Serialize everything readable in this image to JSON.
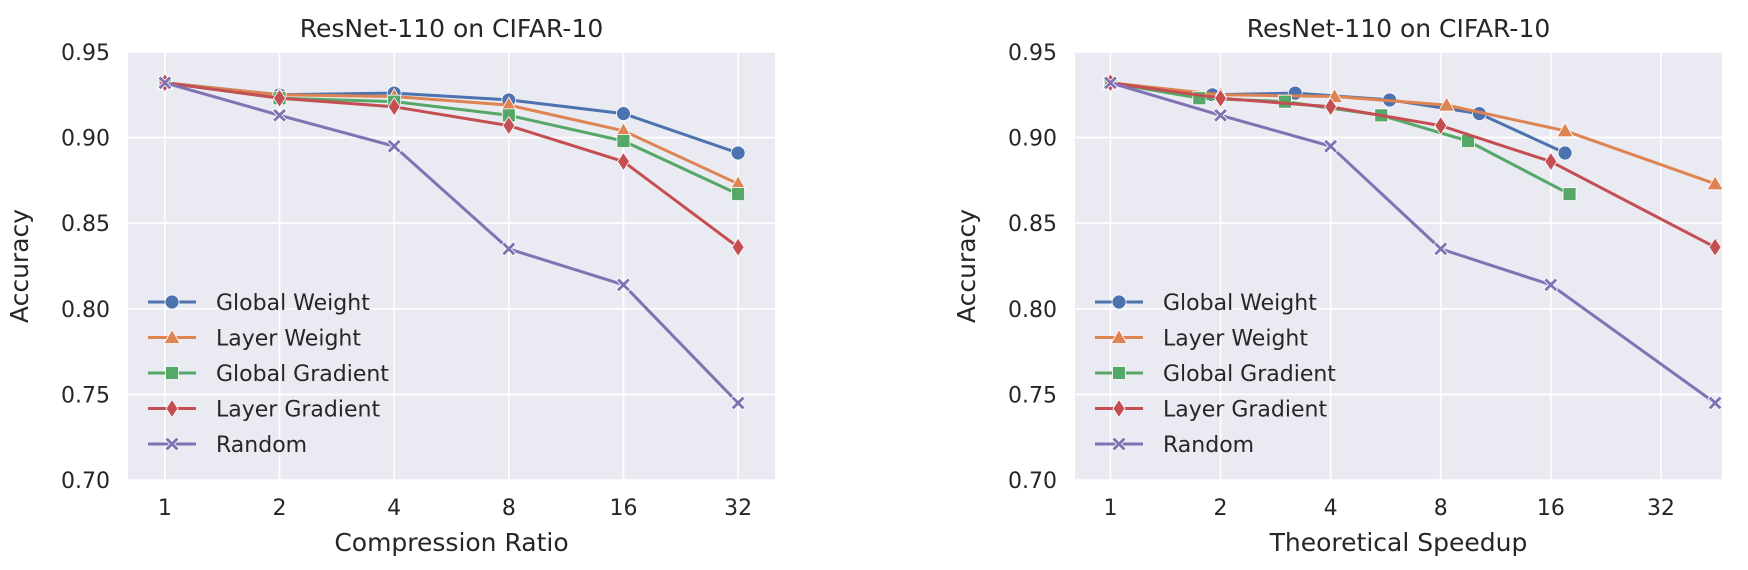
{
  "colors": {
    "background": "#eaeaf2",
    "grid": "#ffffff",
    "series": [
      "#4c72b0",
      "#dd8452",
      "#55a868",
      "#c44e52",
      "#8172b3"
    ]
  },
  "markers": [
    "circle",
    "triangle",
    "square",
    "diamond",
    "x"
  ],
  "chart_data": [
    {
      "type": "line",
      "title": "ResNet-110 on CIFAR-10",
      "xlabel": "Compression Ratio",
      "ylabel": "Accuracy",
      "x_scale": "log2",
      "xlim": [
        0.8,
        40
      ],
      "ylim": [
        0.7,
        0.95
      ],
      "x_ticks": [
        1,
        2,
        4,
        8,
        16,
        32
      ],
      "x_tick_labels": [
        "1",
        "2",
        "4",
        "8",
        "16",
        "32"
      ],
      "y_ticks": [
        0.7,
        0.75,
        0.8,
        0.85,
        0.9,
        0.95
      ],
      "y_tick_labels": [
        "0.70",
        "0.75",
        "0.80",
        "0.85",
        "0.90",
        "0.95"
      ],
      "grid": true,
      "legend_position": "lower-left",
      "series": [
        {
          "name": "Global Weight",
          "x": [
            1,
            2,
            4,
            8,
            16,
            32
          ],
          "y": [
            0.932,
            0.925,
            0.926,
            0.922,
            0.914,
            0.891
          ]
        },
        {
          "name": "Layer Weight",
          "x": [
            1,
            2,
            4,
            8,
            16,
            32
          ],
          "y": [
            0.932,
            0.925,
            0.924,
            0.919,
            0.904,
            0.873
          ]
        },
        {
          "name": "Global Gradient",
          "x": [
            1,
            2,
            4,
            8,
            16,
            32
          ],
          "y": [
            0.932,
            0.923,
            0.921,
            0.913,
            0.898,
            0.867
          ]
        },
        {
          "name": "Layer Gradient",
          "x": [
            1,
            2,
            4,
            8,
            16,
            32
          ],
          "y": [
            0.932,
            0.923,
            0.918,
            0.907,
            0.886,
            0.836
          ]
        },
        {
          "name": "Random",
          "x": [
            1,
            2,
            4,
            8,
            16,
            32
          ],
          "y": [
            0.932,
            0.913,
            0.895,
            0.835,
            0.814,
            0.745
          ]
        }
      ]
    },
    {
      "type": "line",
      "title": "ResNet-110 on CIFAR-10",
      "xlabel": "Theoretical Speedup",
      "ylabel": "Accuracy",
      "x_scale": "log2",
      "xlim": [
        0.8,
        47
      ],
      "ylim": [
        0.7,
        0.95
      ],
      "x_ticks": [
        1,
        2,
        4,
        8,
        16,
        32
      ],
      "x_tick_labels": [
        "1",
        "2",
        "4",
        "8",
        "16",
        "32"
      ],
      "y_ticks": [
        0.7,
        0.75,
        0.8,
        0.85,
        0.9,
        0.95
      ],
      "y_tick_labels": [
        "0.70",
        "0.75",
        "0.80",
        "0.85",
        "0.90",
        "0.95"
      ],
      "grid": true,
      "legend_position": "lower-left",
      "series": [
        {
          "name": "Global Weight",
          "x": [
            1,
            1.9,
            3.2,
            5.8,
            10.2,
            17.5
          ],
          "y": [
            0.932,
            0.925,
            0.926,
            0.922,
            0.914,
            0.891
          ]
        },
        {
          "name": "Layer Weight",
          "x": [
            1,
            2.0,
            4.1,
            8.3,
            17.5,
            45
          ],
          "y": [
            0.932,
            0.925,
            0.924,
            0.919,
            0.904,
            0.873
          ]
        },
        {
          "name": "Global Gradient",
          "x": [
            1,
            1.75,
            3.0,
            5.5,
            9.5,
            18
          ],
          "y": [
            0.932,
            0.923,
            0.921,
            0.913,
            0.898,
            0.867
          ]
        },
        {
          "name": "Layer Gradient",
          "x": [
            1,
            2.0,
            4.0,
            8.0,
            16.0,
            45
          ],
          "y": [
            0.932,
            0.923,
            0.918,
            0.907,
            0.886,
            0.836
          ]
        },
        {
          "name": "Random",
          "x": [
            1,
            2.0,
            4.0,
            8.0,
            16.0,
            45
          ],
          "y": [
            0.932,
            0.913,
            0.895,
            0.835,
            0.814,
            0.745
          ]
        }
      ]
    }
  ]
}
